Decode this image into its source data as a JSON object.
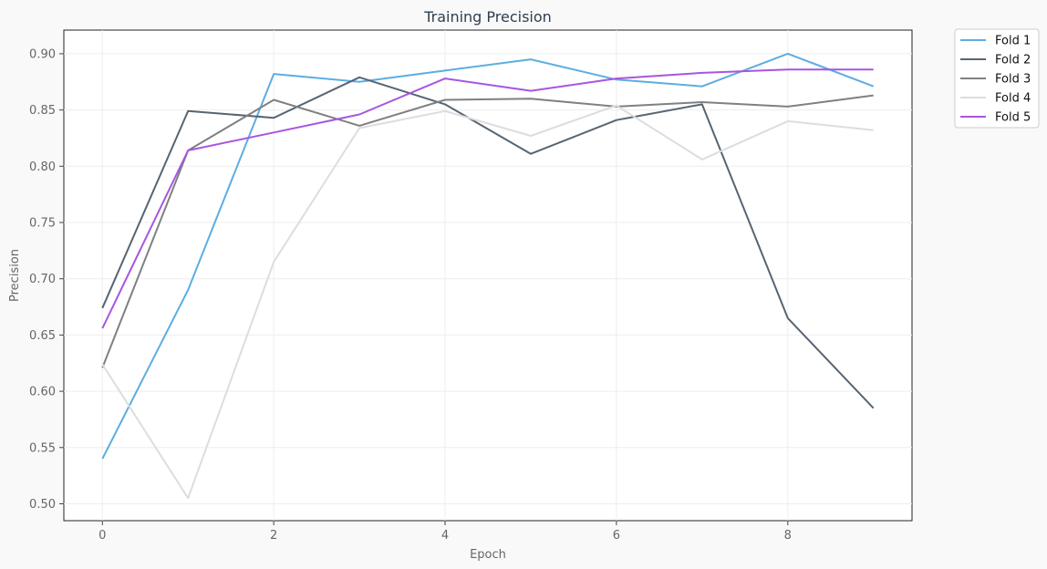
{
  "chart_data": {
    "type": "line",
    "title": "Training Precision",
    "xlabel": "Epoch",
    "ylabel": "Precision",
    "x": [
      0,
      1,
      2,
      3,
      4,
      5,
      6,
      7,
      8,
      9
    ],
    "xlim": [
      -0.45,
      9.45
    ],
    "ylim": [
      0.485,
      0.921
    ],
    "xticks": [
      "0",
      "2",
      "4",
      "6",
      "8"
    ],
    "yticks": [
      "0.50",
      "0.55",
      "0.60",
      "0.65",
      "0.70",
      "0.75",
      "0.80",
      "0.85",
      "0.90"
    ],
    "grid": true,
    "legend_position": "outside-top-right",
    "series": [
      {
        "name": "Fold 1",
        "color": "#5dade2",
        "values": [
          0.54,
          0.69,
          0.882,
          0.875,
          0.885,
          0.895,
          0.877,
          0.871,
          0.9,
          0.871
        ]
      },
      {
        "name": "Fold 2",
        "color": "#566573",
        "values": [
          0.674,
          0.849,
          0.843,
          0.879,
          0.855,
          0.811,
          0.841,
          0.855,
          0.665,
          0.585
        ]
      },
      {
        "name": "Fold 3",
        "color": "#808080",
        "values": [
          0.621,
          0.814,
          0.859,
          0.836,
          0.859,
          0.86,
          0.853,
          0.857,
          0.853,
          0.863
        ]
      },
      {
        "name": "Fold 4",
        "color": "#dddddd",
        "values": [
          0.624,
          0.505,
          0.715,
          0.834,
          0.849,
          0.827,
          0.854,
          0.806,
          0.84,
          0.832
        ]
      },
      {
        "name": "Fold 5",
        "color": "#a855e0",
        "values": [
          0.656,
          0.814,
          0.83,
          0.846,
          0.878,
          0.867,
          0.878,
          0.883,
          0.886,
          0.886
        ]
      }
    ]
  }
}
